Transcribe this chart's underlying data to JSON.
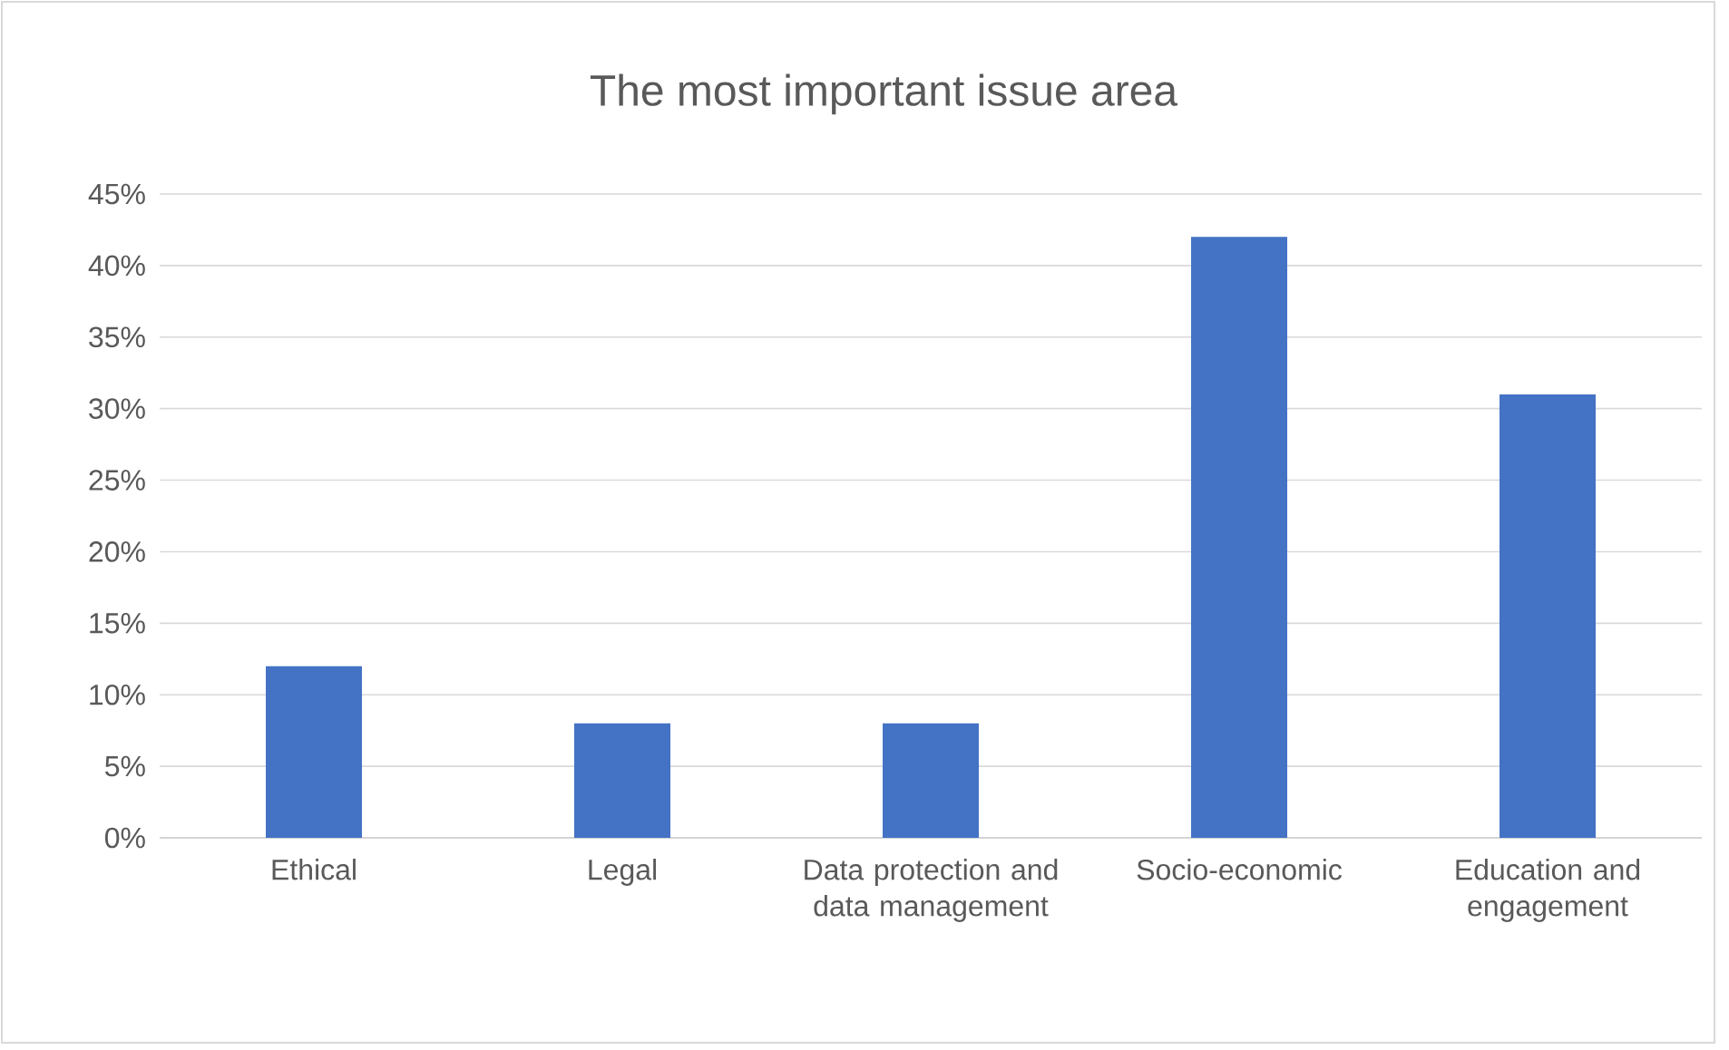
{
  "chart_data": {
    "type": "bar",
    "title": "The most important issue area",
    "categories": [
      "Ethical",
      "Legal",
      "Data protection and data management",
      "Socio-economic",
      "Education and engagement"
    ],
    "values": [
      12,
      8,
      8,
      42,
      31
    ],
    "color": "#4472c4",
    "ylim": [
      0,
      45
    ],
    "yticks": [
      {
        "value": 0,
        "label": "0%"
      },
      {
        "value": 5,
        "label": "5%"
      },
      {
        "value": 10,
        "label": "10%"
      },
      {
        "value": 15,
        "label": "15%"
      },
      {
        "value": 20,
        "label": "20%"
      },
      {
        "value": 25,
        "label": "25%"
      },
      {
        "value": 30,
        "label": "30%"
      },
      {
        "value": 35,
        "label": "35%"
      },
      {
        "value": 40,
        "label": "40%"
      },
      {
        "value": 45,
        "label": "45%"
      }
    ],
    "grid": "y"
  }
}
